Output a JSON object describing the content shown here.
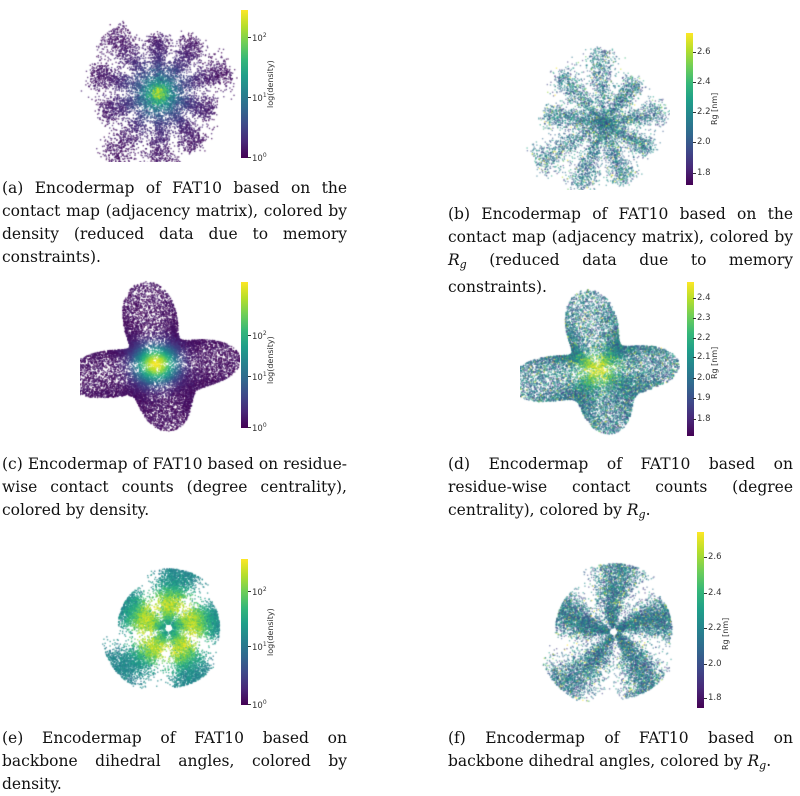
{
  "figure": {
    "panels": [
      {
        "id": "a",
        "caption_label": "(a)",
        "caption_text": "Encodermap of FAT10 based on the contact map (adjacency matrix), colored by density (reduced data due to memory constraints).",
        "caption_suffix": "",
        "colorbar": {
          "label": "log(density)",
          "scale": "log",
          "ticks": [
            "10",
            "10",
            "10"
          ],
          "exponents": [
            "0",
            "1",
            "2"
          ]
        },
        "colormap": "viridis",
        "shape": "star-spiky"
      },
      {
        "id": "b",
        "caption_label": "(b)",
        "caption_text": "Encodermap of FAT10 based on the contact map (adjacency matrix), colored by",
        "caption_var": "R",
        "caption_sub": "g",
        "caption_suffix": "(reduced data due to memory constraints).",
        "colorbar": {
          "label": "Rg [nm]",
          "scale": "linear",
          "ticks": [
            "1.8",
            "2.0",
            "2.2",
            "2.4",
            "2.6"
          ]
        },
        "colormap": "viridis",
        "shape": "star-spiky"
      },
      {
        "id": "c",
        "caption_label": "(c)",
        "caption_text": "Encodermap of FAT10 based on residue-wise contact counts (degree centrality), colored by density.",
        "caption_suffix": "",
        "colorbar": {
          "label": "log(density)",
          "scale": "log",
          "ticks": [
            "10",
            "10",
            "10"
          ],
          "exponents": [
            "0",
            "1",
            "2"
          ]
        },
        "colormap": "viridis",
        "shape": "blob"
      },
      {
        "id": "d",
        "caption_label": "(d)",
        "caption_text": "Encodermap of FAT10 based on residue-wise contact counts (degree centrality), colored by",
        "caption_var": "R",
        "caption_sub": "g",
        "caption_suffix": ".",
        "colorbar": {
          "label": "Rg [nm]",
          "scale": "linear",
          "ticks": [
            "1.8",
            "1.9",
            "2.0",
            "2.1",
            "2.2",
            "2.3",
            "2.4"
          ]
        },
        "colormap": "viridis",
        "shape": "blob"
      },
      {
        "id": "e",
        "caption_label": "(e)",
        "caption_text": "Encodermap of FAT10 based on backbone dihedral angles, colored by density.",
        "caption_suffix": "",
        "colorbar": {
          "label": "log(density)",
          "scale": "log",
          "ticks": [
            "10",
            "10",
            "10"
          ],
          "exponents": [
            "0",
            "1",
            "2"
          ]
        },
        "colormap": "viridis",
        "shape": "pinwheel"
      },
      {
        "id": "f",
        "caption_label": "(f)",
        "caption_text": "Encodermap of FAT10 based on backbone dihedral angles, colored by",
        "caption_var": "R",
        "caption_sub": "g",
        "caption_suffix": ".",
        "colorbar": {
          "label": "Rg [nm]",
          "scale": "linear",
          "ticks": [
            "1.8",
            "2.0",
            "2.2",
            "2.4",
            "2.6"
          ]
        },
        "colormap": "viridis",
        "shape": "pinwheel"
      }
    ]
  }
}
